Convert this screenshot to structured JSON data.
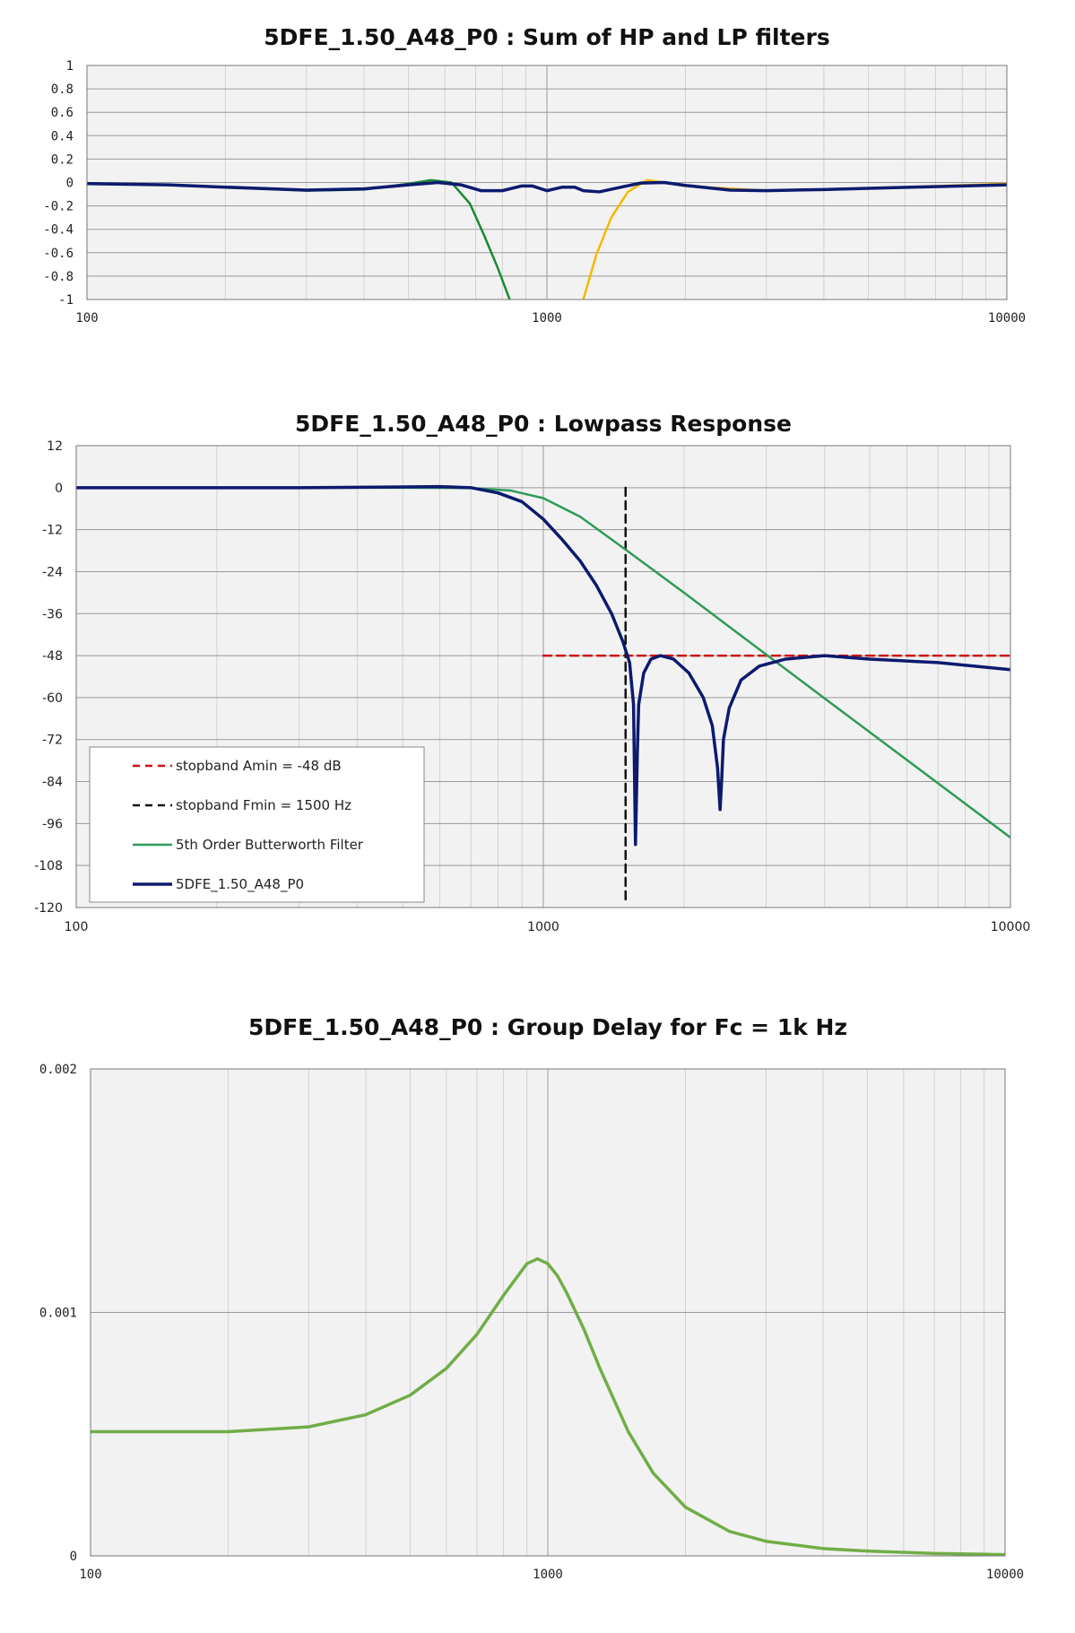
{
  "chart_data": [
    {
      "type": "line",
      "title": "5DFE_1.50_A48_P0 : Sum of HP and LP filters",
      "xscale": "log",
      "xlim": [
        100,
        10000
      ],
      "ylim": [
        -1,
        1
      ],
      "grid": true,
      "x_ticks": [
        "100",
        "1000",
        "10000"
      ],
      "y_ticks": [
        "1",
        "0.8",
        "0.6",
        "0.4",
        "0.2",
        "0",
        "-0.2",
        "-0.4",
        "-0.6",
        "-0.8",
        "-1"
      ],
      "colors": {
        "sum": "#0c1a6e",
        "lowpass": "#1a8a2e",
        "highpass": "#f5b800"
      },
      "series": [
        {
          "key": "lowpass",
          "x": [
            100,
            150,
            200,
            300,
            400,
            500,
            560,
            620,
            680,
            730,
            780,
            830
          ],
          "y": [
            -0.01,
            -0.02,
            -0.04,
            -0.07,
            -0.06,
            -0.01,
            0.02,
            0.0,
            -0.18,
            -0.45,
            -0.72,
            -1.0
          ]
        },
        {
          "key": "highpass",
          "x": [
            1200,
            1280,
            1380,
            1500,
            1650,
            1800,
            2000,
            3000,
            5000,
            10000
          ],
          "y": [
            -1.0,
            -0.62,
            -0.3,
            -0.08,
            0.02,
            0.0,
            -0.03,
            -0.07,
            -0.05,
            -0.01
          ]
        },
        {
          "key": "sum",
          "x": [
            100,
            150,
            200,
            300,
            400,
            500,
            580,
            650,
            720,
            800,
            880,
            930,
            1000,
            1080,
            1150,
            1200,
            1300,
            1450,
            1600,
            1800,
            2000,
            2500,
            3000,
            4000,
            5000,
            7000,
            10000
          ],
          "y": [
            -0.01,
            -0.02,
            -0.04,
            -0.065,
            -0.055,
            -0.02,
            0.0,
            -0.02,
            -0.07,
            -0.07,
            -0.03,
            -0.03,
            -0.07,
            -0.04,
            -0.04,
            -0.07,
            -0.08,
            -0.04,
            -0.005,
            0.0,
            -0.025,
            -0.065,
            -0.07,
            -0.06,
            -0.05,
            -0.035,
            -0.02
          ]
        }
      ]
    },
    {
      "type": "line",
      "title": "5DFE_1.50_A48_P0 : Lowpass Response",
      "xscale": "log",
      "xlim": [
        100,
        10000
      ],
      "ylim": [
        -120,
        12
      ],
      "grid": true,
      "x_ticks": [
        "100",
        "1000",
        "10000"
      ],
      "y_ticks": [
        "12",
        "0",
        "-12",
        "-24",
        "-36",
        "-48",
        "-60",
        "-72",
        "-84",
        "-96",
        "-108",
        "-120"
      ],
      "legend_position": "bottom-left",
      "series": [
        {
          "name": "stopband Amin = -48 dB",
          "key": "amin",
          "color": "#cc1111",
          "dashed": true,
          "x": [
            1000,
            10000
          ],
          "y": [
            -48,
            -48
          ]
        },
        {
          "name": "stopband Fmin = 1500 Hz",
          "key": "fmin",
          "color": "#111111",
          "dashed": true,
          "x": [
            1500,
            1500
          ],
          "y": [
            0,
            -118
          ]
        },
        {
          "name": "5th Order Butterworth Filter",
          "key": "butterworth",
          "color": "#2e9a5a",
          "dashed": false,
          "x": [
            100,
            500,
            700,
            850,
            1000,
            1200,
            1500,
            2000,
            3000,
            4000,
            6000,
            10000
          ],
          "y": [
            0,
            0,
            -0.1,
            -0.8,
            -3,
            -8.3,
            -17.7,
            -30,
            -47.7,
            -60.2,
            -77.8,
            -100
          ]
        },
        {
          "name": "5DFE_1.50_A48_P0",
          "key": "dfe",
          "color": "#0c1a6e",
          "dashed": false,
          "x": [
            100,
            300,
            500,
            600,
            700,
            800,
            900,
            1000,
            1100,
            1200,
            1300,
            1400,
            1480,
            1530,
            1560,
            1575,
            1590,
            1600,
            1640,
            1700,
            1780,
            1900,
            2050,
            2200,
            2300,
            2360,
            2390,
            2410,
            2430,
            2500,
            2650,
            2900,
            3300,
            4000,
            5000,
            7000,
            10000
          ],
          "y": [
            0,
            0,
            0.2,
            0.3,
            0,
            -1.5,
            -4,
            -9,
            -15,
            -21,
            -28,
            -36,
            -44,
            -50,
            -62,
            -102,
            -75,
            -62,
            -53,
            -49,
            -48,
            -49,
            -53,
            -60,
            -68,
            -80,
            -92,
            -83,
            -72,
            -63,
            -55,
            -51,
            -49,
            -48,
            -49,
            -50,
            -52
          ]
        }
      ]
    },
    {
      "type": "line",
      "title": "5DFE_1.50_A48_P0 : Group Delay for Fc = 1k Hz",
      "xscale": "log",
      "xlim": [
        100,
        10000
      ],
      "ylim": [
        0,
        0.002
      ],
      "grid": true,
      "x_ticks": [
        "100",
        "1000",
        "10000"
      ],
      "y_ticks": [
        "0.002",
        "0.001",
        "0"
      ],
      "colors": {
        "delay": "#70ad47"
      },
      "series": [
        {
          "key": "delay",
          "x": [
            100,
            200,
            300,
            400,
            500,
            600,
            700,
            800,
            900,
            950,
            1000,
            1050,
            1100,
            1200,
            1300,
            1500,
            1700,
            2000,
            2500,
            3000,
            4000,
            5000,
            7000,
            10000
          ],
          "y": [
            0.00051,
            0.00051,
            0.00053,
            0.00058,
            0.00066,
            0.00077,
            0.00091,
            0.00107,
            0.0012,
            0.00122,
            0.0012,
            0.00115,
            0.00108,
            0.00093,
            0.00077,
            0.00051,
            0.00034,
            0.0002,
            0.0001,
            6e-05,
            3e-05,
            2e-05,
            1e-05,
            5e-06
          ]
        }
      ]
    }
  ]
}
